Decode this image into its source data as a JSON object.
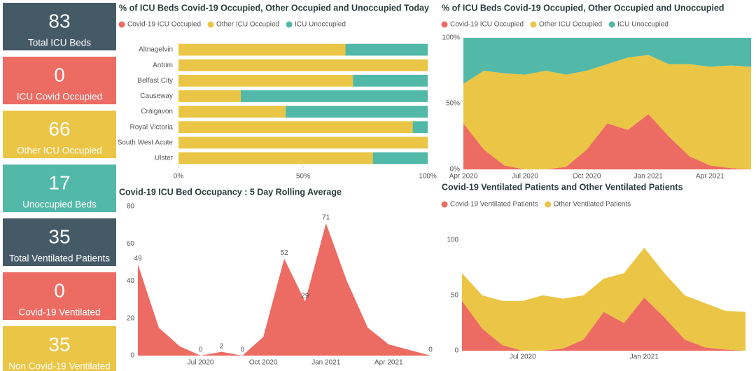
{
  "cards": [
    {
      "value": 83,
      "label": "Total ICU Beds",
      "color": "#455a67"
    },
    {
      "value": 0,
      "label": "ICU Covid Occupied",
      "color": "#ec6b62"
    },
    {
      "value": 66,
      "label": "Other ICU Occupied",
      "color": "#ebc545"
    },
    {
      "value": 17,
      "label": "Unoccupied Beds",
      "color": "#52b8a8"
    },
    {
      "value": 35,
      "label": "Total Ventilated Patients",
      "color": "#455a67"
    },
    {
      "value": 0,
      "label": "Covid-19 Ventilated",
      "color": "#ec6b62"
    },
    {
      "value": 35,
      "label": "Non Covid-19 Ventilated",
      "color": "#ebc545"
    }
  ],
  "chart_data": [
    {
      "type": "bar",
      "orientation": "horizontal",
      "stacked": true,
      "title": "% of ICU Beds Covid-19 Occupied, Other Occupied and Unoccupied Today",
      "categories": [
        "Altnagelvin",
        "Antrim",
        "Belfast City",
        "Causeway",
        "Craigavon",
        "Royal Victoria",
        "South West Acute",
        "Ulster"
      ],
      "series": [
        {
          "name": "Covid-19 ICU Occupied",
          "color": "#ec6b62",
          "values": [
            0,
            0,
            0,
            0,
            0,
            0,
            0,
            0
          ]
        },
        {
          "name": "Other ICU Occupied",
          "color": "#ebc545",
          "values": [
            67,
            100,
            70,
            25,
            43,
            94,
            100,
            78
          ]
        },
        {
          "name": "ICU Unoccupied",
          "color": "#52b8a8",
          "values": [
            33,
            0,
            30,
            75,
            57,
            6,
            0,
            22
          ]
        }
      ],
      "xlim": [
        0,
        100
      ],
      "xticks": [
        {
          "value": 0,
          "label": "0%"
        },
        {
          "value": 50,
          "label": "50%"
        },
        {
          "value": 100,
          "label": "100%"
        }
      ]
    },
    {
      "type": "area",
      "stacked": true,
      "title": "% of ICU Beds Covid-19 Occupied, Other Occupied and Unoccupied",
      "x": [
        "2020-04",
        "2020-05",
        "2020-06",
        "2020-07",
        "2020-08",
        "2020-09",
        "2020-10",
        "2020-11",
        "2020-12",
        "2021-01",
        "2021-02",
        "2021-03",
        "2021-04",
        "2021-05",
        "2021-06"
      ],
      "series": [
        {
          "name": "Covid-19 ICU Occupied",
          "color": "#ec6b62",
          "values": [
            35,
            15,
            3,
            0,
            0,
            2,
            15,
            35,
            30,
            42,
            25,
            10,
            3,
            1,
            0
          ]
        },
        {
          "name": "Other ICU Occupied",
          "color": "#ebc545",
          "values": [
            30,
            60,
            70,
            72,
            75,
            70,
            60,
            45,
            55,
            45,
            55,
            70,
            75,
            78,
            78
          ]
        },
        {
          "name": "ICU Unoccupied",
          "color": "#52b8a8",
          "values": [
            35,
            25,
            27,
            28,
            25,
            28,
            25,
            20,
            15,
            13,
            20,
            20,
            22,
            21,
            22
          ]
        }
      ],
      "xlim": [
        "2020-04",
        "2021-06"
      ],
      "xticks": [
        {
          "value": "2020-04",
          "label": "Apr 2020"
        },
        {
          "value": "2020-07",
          "label": "Jul 2020"
        },
        {
          "value": "2020-10",
          "label": "Oct 2020"
        },
        {
          "value": "2021-01",
          "label": "Jan 2021"
        },
        {
          "value": "2021-04",
          "label": "Apr 2021"
        }
      ],
      "ylim": [
        0,
        100
      ],
      "yticks": [
        {
          "value": 0,
          "label": "0%"
        },
        {
          "value": 50,
          "label": "50%"
        },
        {
          "value": 100,
          "label": "100%"
        }
      ]
    },
    {
      "type": "area",
      "title": "Covid-19 ICU Bed Occupancy : 5 Day Rolling Average",
      "x": [
        "2020-04",
        "2020-05",
        "2020-06",
        "2020-07",
        "2020-08",
        "2020-09",
        "2020-10",
        "2020-11",
        "2020-12",
        "2021-01",
        "2021-02",
        "2021-03",
        "2021-04",
        "2021-05",
        "2021-06"
      ],
      "values": [
        49,
        15,
        5,
        0,
        2,
        0,
        10,
        52,
        29,
        71,
        40,
        15,
        6,
        3,
        0
      ],
      "value_labels": [
        "49",
        null,
        null,
        "0",
        "2",
        "0",
        null,
        "52",
        "29",
        "71",
        null,
        null,
        null,
        null,
        "0"
      ],
      "color": "#ec6b62",
      "xlim": [
        "2020-04",
        "2021-06"
      ],
      "xticks": [
        {
          "value": "2020-07",
          "label": "Jul 2020"
        },
        {
          "value": "2020-10",
          "label": "Oct 2020"
        },
        {
          "value": "2021-01",
          "label": "Jan 2021"
        },
        {
          "value": "2021-04",
          "label": "Apr 2021"
        }
      ],
      "ylim": [
        0,
        80
      ],
      "yticks": [
        0,
        20,
        40,
        60,
        80
      ]
    },
    {
      "type": "area",
      "stacked": true,
      "title": "Covid-19 Ventilated Patients and Other Ventilated Patients",
      "x": [
        "2020-04",
        "2020-05",
        "2020-06",
        "2020-07",
        "2020-08",
        "2020-09",
        "2020-10",
        "2020-11",
        "2020-12",
        "2021-01",
        "2021-02",
        "2021-03",
        "2021-04",
        "2021-05",
        "2021-06"
      ],
      "series": [
        {
          "name": "Covid-19 Ventilated Patients",
          "color": "#ec6b62",
          "values": [
            45,
            20,
            5,
            0,
            0,
            2,
            10,
            35,
            25,
            48,
            30,
            10,
            3,
            1,
            0
          ]
        },
        {
          "name": "Other Ventilated Patients",
          "color": "#ebc545",
          "values": [
            25,
            30,
            40,
            45,
            50,
            45,
            40,
            30,
            45,
            45,
            40,
            40,
            40,
            35,
            35
          ]
        }
      ],
      "xlim": [
        "2020-04",
        "2021-06"
      ],
      "xticks": [
        {
          "value": "2020-07",
          "label": "Jul 2020"
        },
        {
          "value": "2021-01",
          "label": "Jan 2021"
        }
      ],
      "ylim": [
        0,
        110
      ],
      "yticks": [
        0,
        50,
        100
      ]
    }
  ]
}
